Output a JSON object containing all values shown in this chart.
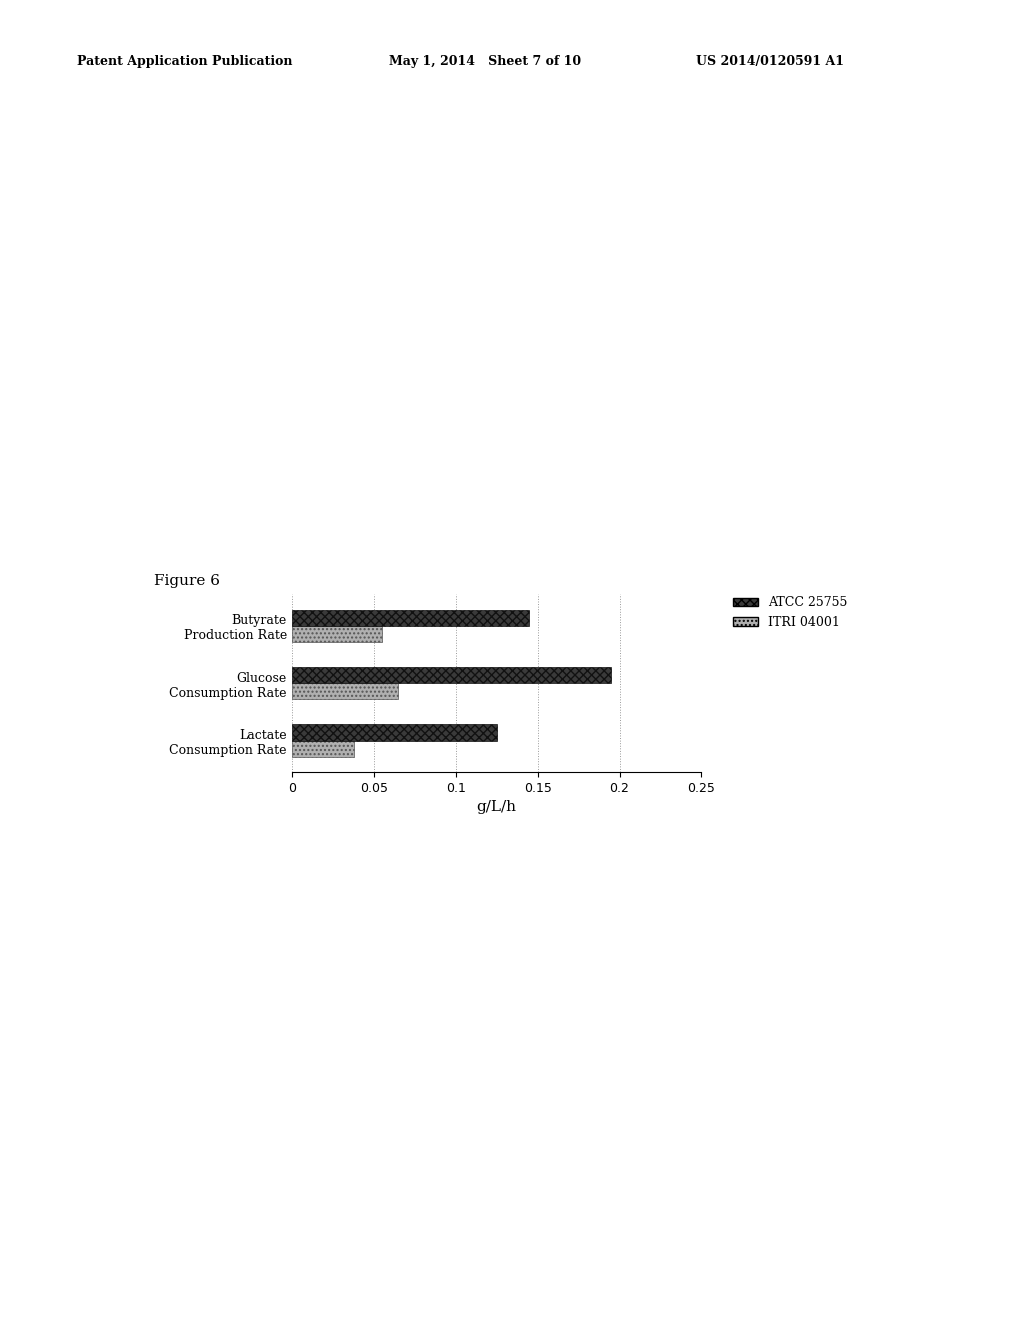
{
  "header_left": "Patent Application Publication",
  "header_mid": "May 1, 2014   Sheet 7 of 10",
  "header_right": "US 2014/0120591 A1",
  "figure_label": "Figure 6",
  "categories": [
    "Butyrate\nProduction Rate",
    "Glucose\nConsumption Rate",
    "Lactate\nConsumption Rate"
  ],
  "series": [
    {
      "name": "ATCC 25755",
      "values": [
        0.145,
        0.195,
        0.125
      ],
      "color": "#3a3a3a",
      "hatch": "xxxx"
    },
    {
      "name": "ITRI 04001",
      "values": [
        0.055,
        0.065,
        0.038
      ],
      "color": "#b0b0b0",
      "hatch": "...."
    }
  ],
  "xlabel": "g/L/h",
  "xlim": [
    0,
    0.25
  ],
  "xticks": [
    0,
    0.05,
    0.1,
    0.15,
    0.2,
    0.25
  ],
  "background_color": "#ffffff",
  "bar_height": 0.28,
  "figure_label_fontsize": 11,
  "header_fontsize": 9,
  "tick_fontsize": 9,
  "xlabel_fontsize": 11,
  "legend_fontsize": 9
}
